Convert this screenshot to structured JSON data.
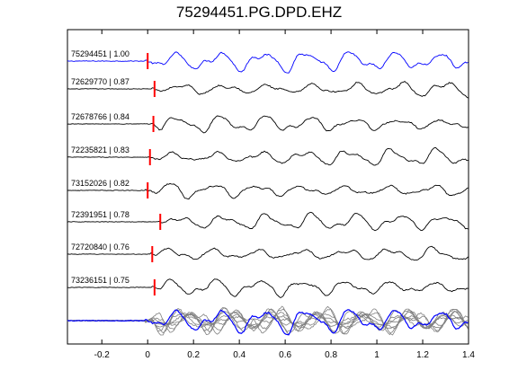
{
  "chart_data": {
    "type": "line",
    "title": "75294451.PG.DPD.EHZ",
    "xlabel": "",
    "ylabel": "",
    "xlim": [
      -0.35,
      1.4
    ],
    "xticks": [
      -0.2,
      0,
      0.2,
      0.4,
      0.6,
      0.8,
      1,
      1.2,
      1.4
    ],
    "xtick_labels": [
      "-0.2",
      "0",
      "0.2",
      "0.4",
      "0.6",
      "0.8",
      "1",
      "1.2",
      "1.4"
    ],
    "grid": false,
    "legend": "none",
    "colors": {
      "reference": "#0000ff",
      "trace": "#000000",
      "pick": "#ff0000",
      "overlay": "#808080"
    },
    "traces": [
      {
        "label": "75294451 | 1.00",
        "pick_time": 0.0,
        "reference": true
      },
      {
        "label": "72629770 | 0.87",
        "pick_time": 0.03
      },
      {
        "label": "72678766 | 0.84",
        "pick_time": 0.025
      },
      {
        "label": "72235821 | 0.83",
        "pick_time": 0.01
      },
      {
        "label": "73152026 | 0.82",
        "pick_time": 0.0
      },
      {
        "label": "72391951 | 0.78",
        "pick_time": 0.055
      },
      {
        "label": "72720840 | 0.76",
        "pick_time": 0.02
      },
      {
        "label": "73236151 | 0.75",
        "pick_time": 0.03
      }
    ],
    "stack": {
      "description_label": "",
      "series_count": 8
    }
  }
}
